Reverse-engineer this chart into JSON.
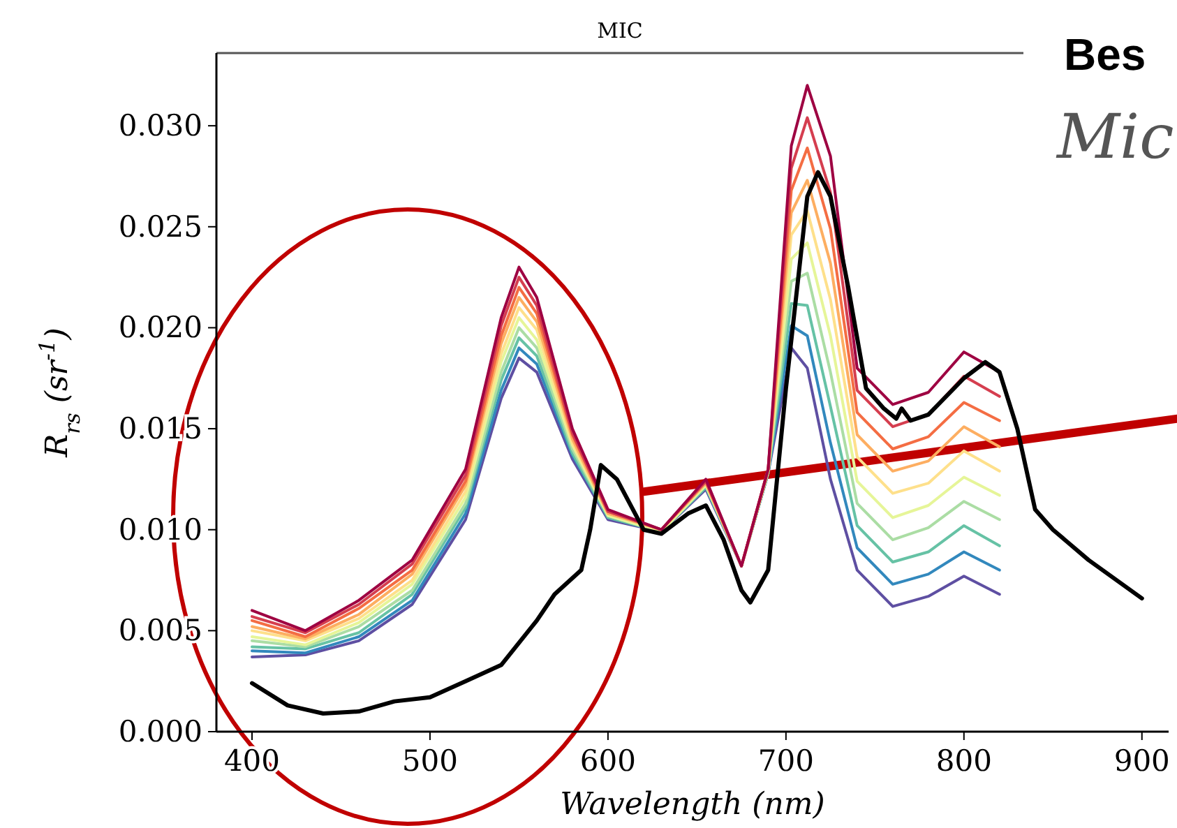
{
  "chart_data": {
    "type": "line",
    "title": "MIC",
    "xlabel": "Wavelength (nm)",
    "ylabel": "R$_{rs}$ (sr$^{-1}$)",
    "annotations": [
      "Bes",
      "Mic"
    ],
    "xlim": [
      380,
      915
    ],
    "ylim": [
      0,
      0.0336
    ],
    "xticks": [
      400,
      500,
      600,
      700,
      800,
      900
    ],
    "yticks": [
      {
        "value": 0,
        "label": "0.000"
      },
      {
        "value": 0.005,
        "label": "0.005"
      },
      {
        "value": 0.01,
        "label": "0.010"
      },
      {
        "value": 0.015,
        "label": "0.015"
      },
      {
        "value": 0.02,
        "label": "0.020"
      },
      {
        "value": 0.025,
        "label": "0.025"
      },
      {
        "value": 0.03,
        "label": "0.030"
      }
    ],
    "grid": false,
    "marker": "none",
    "line_style": "solid",
    "x": [
      400,
      430,
      460,
      490,
      520,
      540,
      550,
      560,
      580,
      600,
      630,
      655,
      675,
      690,
      703,
      712,
      725,
      740,
      760,
      780,
      800,
      820
    ],
    "series": [
      {
        "color": "#5e4fa2",
        "values": [
          0.0037,
          0.0038,
          0.0045,
          0.0063,
          0.0105,
          0.0165,
          0.0185,
          0.0178,
          0.0135,
          0.0105,
          0.0099,
          0.012,
          0.0082,
          0.0128,
          0.019,
          0.018,
          0.0125,
          0.008,
          0.0062,
          0.0067,
          0.0077,
          0.0068
        ]
      },
      {
        "color": "#3288bd",
        "values": [
          0.004,
          0.0039,
          0.0047,
          0.0065,
          0.0108,
          0.0169,
          0.019,
          0.0182,
          0.0137,
          0.0106,
          0.0099,
          0.0121,
          0.0082,
          0.0128,
          0.0201,
          0.0196,
          0.0143,
          0.0091,
          0.0073,
          0.0078,
          0.0089,
          0.008
        ]
      },
      {
        "color": "#66c2a5",
        "values": [
          0.0042,
          0.0041,
          0.0049,
          0.0068,
          0.0111,
          0.0174,
          0.0195,
          0.0186,
          0.0138,
          0.0106,
          0.0099,
          0.0121,
          0.0082,
          0.0128,
          0.0212,
          0.0211,
          0.0161,
          0.0102,
          0.0084,
          0.0089,
          0.0102,
          0.0092
        ]
      },
      {
        "color": "#abdda4",
        "values": [
          0.0045,
          0.0042,
          0.0052,
          0.007,
          0.0113,
          0.0178,
          0.02,
          0.019,
          0.014,
          0.0107,
          0.0099,
          0.0122,
          0.0082,
          0.0129,
          0.0223,
          0.0227,
          0.0178,
          0.0113,
          0.0095,
          0.0101,
          0.0114,
          0.0105
        ]
      },
      {
        "color": "#e6f598",
        "values": [
          0.0047,
          0.0043,
          0.0054,
          0.0073,
          0.0116,
          0.0183,
          0.0205,
          0.0194,
          0.0142,
          0.0107,
          0.0099,
          0.0122,
          0.0082,
          0.0129,
          0.0234,
          0.0242,
          0.0196,
          0.0124,
          0.0106,
          0.0112,
          0.0126,
          0.0117
        ]
      },
      {
        "color": "#fee08b",
        "values": [
          0.005,
          0.0045,
          0.0056,
          0.0075,
          0.0119,
          0.0187,
          0.021,
          0.0199,
          0.0143,
          0.0108,
          0.01,
          0.0123,
          0.0082,
          0.0129,
          0.0246,
          0.0258,
          0.0214,
          0.0136,
          0.0118,
          0.0123,
          0.0139,
          0.0129
        ]
      },
      {
        "color": "#fdae61",
        "values": [
          0.0052,
          0.0046,
          0.0058,
          0.0078,
          0.0122,
          0.0192,
          0.0215,
          0.0203,
          0.0145,
          0.0108,
          0.01,
          0.0123,
          0.0082,
          0.0129,
          0.0257,
          0.0273,
          0.0232,
          0.0147,
          0.0129,
          0.0134,
          0.0151,
          0.0141
        ]
      },
      {
        "color": "#f46d43",
        "values": [
          0.0055,
          0.0047,
          0.0061,
          0.008,
          0.0124,
          0.0196,
          0.022,
          0.0207,
          0.0147,
          0.0109,
          0.01,
          0.0124,
          0.0082,
          0.013,
          0.0268,
          0.0289,
          0.0249,
          0.0158,
          0.014,
          0.0146,
          0.0163,
          0.0154
        ]
      },
      {
        "color": "#d53e4f",
        "values": [
          0.0057,
          0.0049,
          0.0063,
          0.0083,
          0.0127,
          0.0201,
          0.0225,
          0.0211,
          0.0148,
          0.0109,
          0.01,
          0.0124,
          0.0082,
          0.013,
          0.0279,
          0.0304,
          0.0267,
          0.0169,
          0.0151,
          0.0157,
          0.0176,
          0.0166
        ]
      },
      {
        "color": "#9e0142",
        "values": [
          0.006,
          0.005,
          0.0065,
          0.0085,
          0.013,
          0.0205,
          0.023,
          0.0215,
          0.015,
          0.011,
          0.01,
          0.0125,
          0.0082,
          0.013,
          0.029,
          0.032,
          0.0285,
          0.018,
          0.0162,
          0.0168,
          0.0188,
          0.0178
        ]
      },
      {
        "color": "#000000",
        "x": [
          400,
          420,
          440,
          460,
          480,
          500,
          520,
          540,
          560,
          570,
          585,
          590,
          596,
          605,
          620,
          630,
          645,
          655,
          665,
          675,
          680,
          690,
          700,
          712,
          718,
          725,
          735,
          745,
          755,
          762,
          765,
          770,
          780,
          800,
          812,
          820,
          830,
          840,
          850,
          870,
          900
        ],
        "values": [
          0.0024,
          0.0013,
          0.0009,
          0.001,
          0.0015,
          0.0017,
          0.0025,
          0.0033,
          0.0055,
          0.0068,
          0.008,
          0.01,
          0.0132,
          0.0125,
          0.01,
          0.0098,
          0.0108,
          0.0112,
          0.0095,
          0.007,
          0.0064,
          0.008,
          0.017,
          0.0265,
          0.0277,
          0.0265,
          0.022,
          0.017,
          0.016,
          0.0155,
          0.016,
          0.0154,
          0.0157,
          0.0175,
          0.0183,
          0.0178,
          0.015,
          0.011,
          0.01,
          0.0085,
          0.0066
        ]
      }
    ]
  }
}
